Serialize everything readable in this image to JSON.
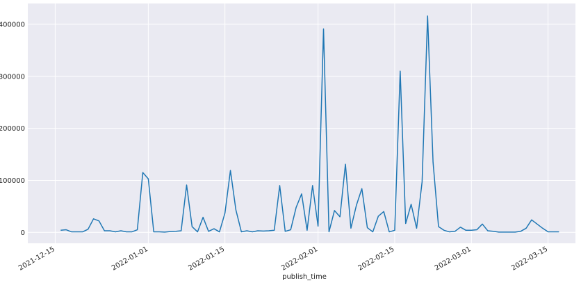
{
  "chart_data": {
    "type": "line",
    "x_label": "publish_time",
    "color": "#1f77b4",
    "grid": true,
    "x": [
      "2021-12-16",
      "2021-12-17",
      "2021-12-18",
      "2021-12-19",
      "2021-12-20",
      "2021-12-21",
      "2021-12-22",
      "2021-12-23",
      "2021-12-24",
      "2021-12-25",
      "2021-12-26",
      "2021-12-27",
      "2021-12-28",
      "2021-12-29",
      "2021-12-30",
      "2021-12-31",
      "2022-01-01",
      "2022-01-02",
      "2022-01-03",
      "2022-01-04",
      "2022-01-05",
      "2022-01-06",
      "2022-01-07",
      "2022-01-08",
      "2022-01-09",
      "2022-01-10",
      "2022-01-11",
      "2022-01-12",
      "2022-01-13",
      "2022-01-14",
      "2022-01-15",
      "2022-01-16",
      "2022-01-17",
      "2022-01-18",
      "2022-01-19",
      "2022-01-20",
      "2022-01-21",
      "2022-01-22",
      "2022-01-23",
      "2022-01-24",
      "2022-01-25",
      "2022-01-26",
      "2022-01-27",
      "2022-01-28",
      "2022-01-29",
      "2022-01-30",
      "2022-01-31",
      "2022-02-01",
      "2022-02-02",
      "2022-02-03",
      "2022-02-04",
      "2022-02-05",
      "2022-02-06",
      "2022-02-07",
      "2022-02-08",
      "2022-02-09",
      "2022-02-10",
      "2022-02-11",
      "2022-02-12",
      "2022-02-13",
      "2022-02-14",
      "2022-02-15",
      "2022-02-16",
      "2022-02-17",
      "2022-02-18",
      "2022-02-19",
      "2022-02-20",
      "2022-02-21",
      "2022-02-22",
      "2022-02-23",
      "2022-02-24",
      "2022-02-25",
      "2022-02-26",
      "2022-02-27",
      "2022-02-28",
      "2022-03-01",
      "2022-03-02",
      "2022-03-03",
      "2022-03-04",
      "2022-03-05",
      "2022-03-06",
      "2022-03-07",
      "2022-03-08",
      "2022-03-09",
      "2022-03-10",
      "2022-03-11",
      "2022-03-12",
      "2022-03-13",
      "2022-03-14",
      "2022-03-15",
      "2022-03-16",
      "2022-03-17"
    ],
    "values": [
      4000,
      5000,
      1000,
      1000,
      1000,
      6000,
      26000,
      22000,
      3000,
      3000,
      1000,
      3000,
      1000,
      1000,
      5000,
      115000,
      103000,
      1000,
      1000,
      500,
      1500,
      2000,
      3000,
      91000,
      11000,
      1000,
      29000,
      2000,
      7000,
      1000,
      37000,
      119000,
      43000,
      1000,
      3000,
      1000,
      3000,
      2500,
      3000,
      4000,
      90000,
      2000,
      5000,
      48000,
      74000,
      4000,
      90000,
      12000,
      391000,
      1000,
      42000,
      30000,
      131000,
      8000,
      52000,
      84000,
      9000,
      1000,
      31000,
      40000,
      1000,
      4000,
      310000,
      17000,
      54000,
      8000,
      97000,
      416000,
      135000,
      11000,
      4000,
      1000,
      2000,
      10000,
      4000,
      4000,
      5000,
      16000,
      3000,
      2000,
      500,
      500,
      500,
      500,
      2000,
      8000,
      24000,
      16000,
      8000,
      1000,
      1000,
      1000
    ],
    "xlim": [
      "2021-12-10",
      "2022-03-20"
    ],
    "xticks": [
      "2021-12-15",
      "2022-01-01",
      "2022-01-15",
      "2022-02-01",
      "2022-02-15",
      "2022-03-01",
      "2022-03-15"
    ],
    "ylim": [
      -21000,
      440000
    ],
    "yticks": [
      0,
      100000,
      200000,
      300000,
      400000
    ]
  }
}
